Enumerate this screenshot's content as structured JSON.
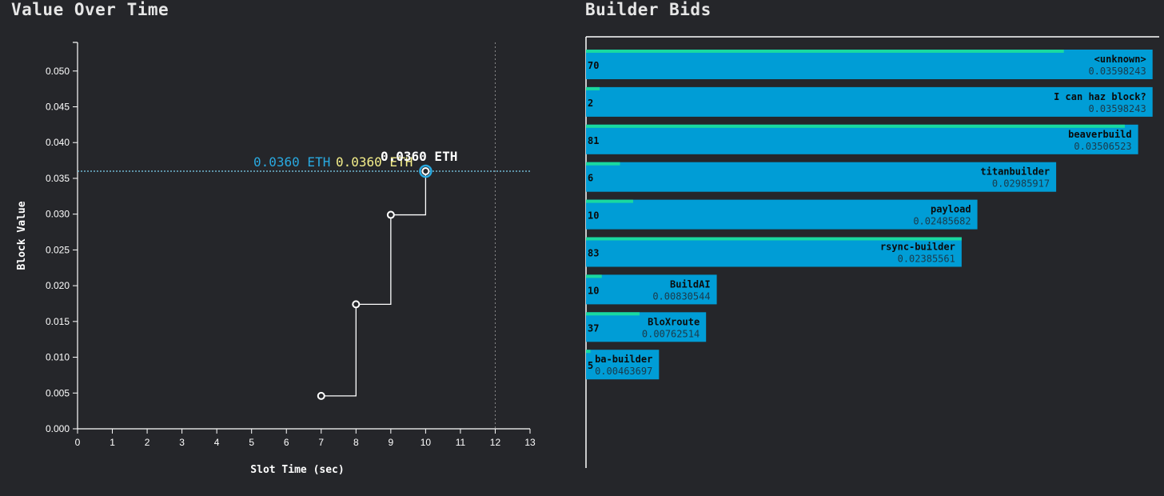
{
  "chart_data": [
    {
      "type": "line",
      "title": "Value Over Time",
      "xlabel": "Slot Time (sec)",
      "ylabel": "Block Value",
      "xlim": [
        0,
        13
      ],
      "ylim": [
        0,
        0.054
      ],
      "x_ticks": [
        "0",
        "1",
        "2",
        "3",
        "4",
        "5",
        "6",
        "7",
        "8",
        "9",
        "10",
        "11",
        "12",
        "13"
      ],
      "y_ticks": [
        "0.000",
        "0.005",
        "0.010",
        "0.015",
        "0.020",
        "0.025",
        "0.030",
        "0.035",
        "0.040",
        "0.045",
        "0.050"
      ],
      "step": "after",
      "series": [
        {
          "x": [
            7,
            8,
            9,
            10
          ],
          "y": [
            0.0046,
            0.0174,
            0.0299,
            0.036
          ]
        }
      ],
      "reference_lines": {
        "horizontal_y": 0.036,
        "vertical_x": 12
      },
      "annotations": [
        {
          "text": "0.0360 ETH",
          "color": "#29a9e0"
        },
        {
          "text": "0.0360 ETH",
          "color": "#f4ee8a"
        },
        {
          "text": "0.0360 ETH",
          "color": "#ffffff"
        }
      ],
      "colors": {
        "line": "#ffffff",
        "highlight": "#29a9e0",
        "reference": "#7fd4f0",
        "vertical_reference": "#8a8a8a"
      },
      "grid": false
    },
    {
      "type": "bar",
      "orientation": "horizontal",
      "title": "Builder Bids",
      "xlim": [
        0,
        0.0362
      ],
      "max_count": 83,
      "categories": [
        "<unknown>",
        "I can haz block?",
        "beaverbuild",
        "titanbuilder",
        "payload",
        "rsync-builder",
        "BuildAI",
        "BloXroute",
        "ba-builder"
      ],
      "values": [
        0.03598243,
        0.03598243,
        0.03506523,
        0.02985917,
        0.02485682,
        0.02385561,
        0.00830544,
        0.00762514,
        0.00463697
      ],
      "value_labels": [
        "0.03598243",
        "0.03598243",
        "0.03506523",
        "0.02985917",
        "0.02485682",
        "0.02385561",
        "0.00830544",
        "0.00762514",
        "0.00463697"
      ],
      "counts": [
        70,
        2,
        81,
        6,
        10,
        83,
        10,
        37,
        5
      ],
      "count_labels": [
        "70",
        "2",
        "81",
        "6",
        "10",
        "83",
        "10",
        "37",
        "5"
      ],
      "colors": {
        "bar": "#009dd6",
        "count_strip": "#19d9a0",
        "axis": "#ffffff"
      },
      "grid": false
    }
  ]
}
